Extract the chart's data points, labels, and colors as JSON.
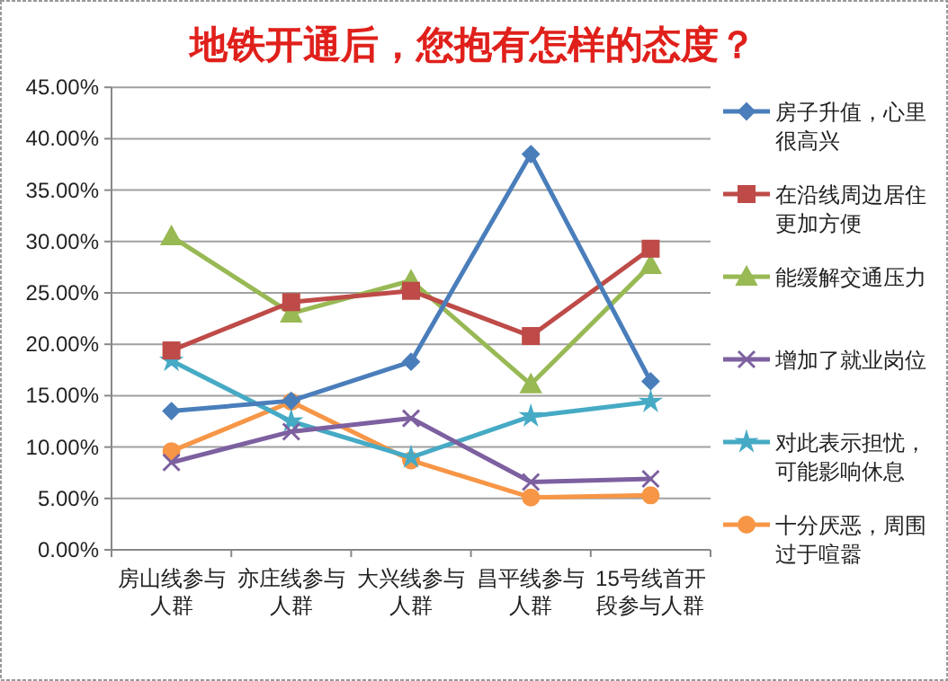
{
  "chart_data": {
    "type": "line",
    "title": "地铁开通后，您抱有怎样的态度？",
    "categories": [
      "房山线参与人群",
      "亦庄线参与人群",
      "大兴线参与人群",
      "昌平线参与人群",
      "15号线首开段参与人群"
    ],
    "ylim": [
      0,
      45
    ],
    "yticks": [
      {
        "value": 0,
        "label": "0.00%"
      },
      {
        "value": 5,
        "label": "5.00%"
      },
      {
        "value": 10,
        "label": "10.00%"
      },
      {
        "value": 15,
        "label": "15.00%"
      },
      {
        "value": 20,
        "label": "20.00%"
      },
      {
        "value": 25,
        "label": "25.00%"
      },
      {
        "value": 30,
        "label": "30.00%"
      },
      {
        "value": 35,
        "label": "35.00%"
      },
      {
        "value": 40,
        "label": "40.00%"
      },
      {
        "value": 45,
        "label": "45.00%"
      }
    ],
    "grid": "y",
    "legend": "right",
    "line_style": "solid",
    "series": [
      {
        "name": "房子升值，心里很高兴",
        "color": "#4a7ebb",
        "marker": "diamond",
        "values": [
          13.5,
          14.5,
          18.3,
          38.5,
          16.4
        ]
      },
      {
        "name": "在沿线周边居住更加方便",
        "color": "#be4b48",
        "marker": "square",
        "values": [
          19.4,
          24.1,
          25.2,
          20.8,
          29.3
        ]
      },
      {
        "name": "能缓解交通压力",
        "color": "#98b954",
        "marker": "triangle",
        "values": [
          30.5,
          23.0,
          26.2,
          16.1,
          27.7
        ]
      },
      {
        "name": "增加了就业岗位",
        "color": "#7d60a0",
        "marker": "cross",
        "values": [
          8.5,
          11.5,
          12.8,
          6.6,
          6.9
        ]
      },
      {
        "name": "对此表示担忧，可能影响休息",
        "color": "#46aac5",
        "marker": "star",
        "values": [
          18.4,
          12.5,
          9.0,
          13.0,
          14.4
        ]
      },
      {
        "name": "十分厌恶，周围过于喧嚣",
        "color": "#f79646",
        "marker": "circle",
        "values": [
          9.6,
          14.4,
          8.7,
          5.1,
          5.3
        ]
      }
    ]
  }
}
